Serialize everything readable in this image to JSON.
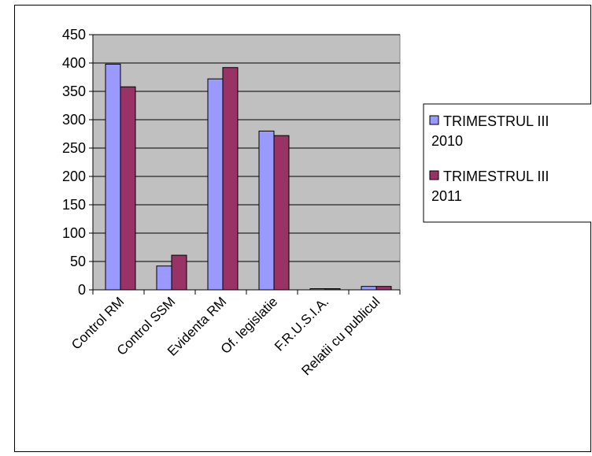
{
  "chart_data": {
    "type": "bar",
    "categories": [
      "Control RM",
      "Control SSM",
      "Evidenta RM",
      "Of. legislatie",
      "F.R.U.S.I.A.",
      "Relatii cu publicul"
    ],
    "series": [
      {
        "name": "TRIMESTRUL III 2010",
        "name_lines": [
          "TRIMESTRUL III",
          "2010"
        ],
        "values": [
          398,
          42,
          372,
          280,
          2,
          6
        ],
        "color": "#9999ff"
      },
      {
        "name": "TRIMESTRUL III 2011",
        "name_lines": [
          "TRIMESTRUL III",
          "2011"
        ],
        "values": [
          358,
          61,
          392,
          272,
          2,
          6
        ],
        "color": "#993366"
      }
    ],
    "ylim": [
      0,
      450
    ],
    "yticks": [
      0,
      50,
      100,
      150,
      200,
      250,
      300,
      350,
      400,
      450
    ],
    "plot_background": "#c0c0c0",
    "grid": true,
    "legend_position": "right"
  }
}
